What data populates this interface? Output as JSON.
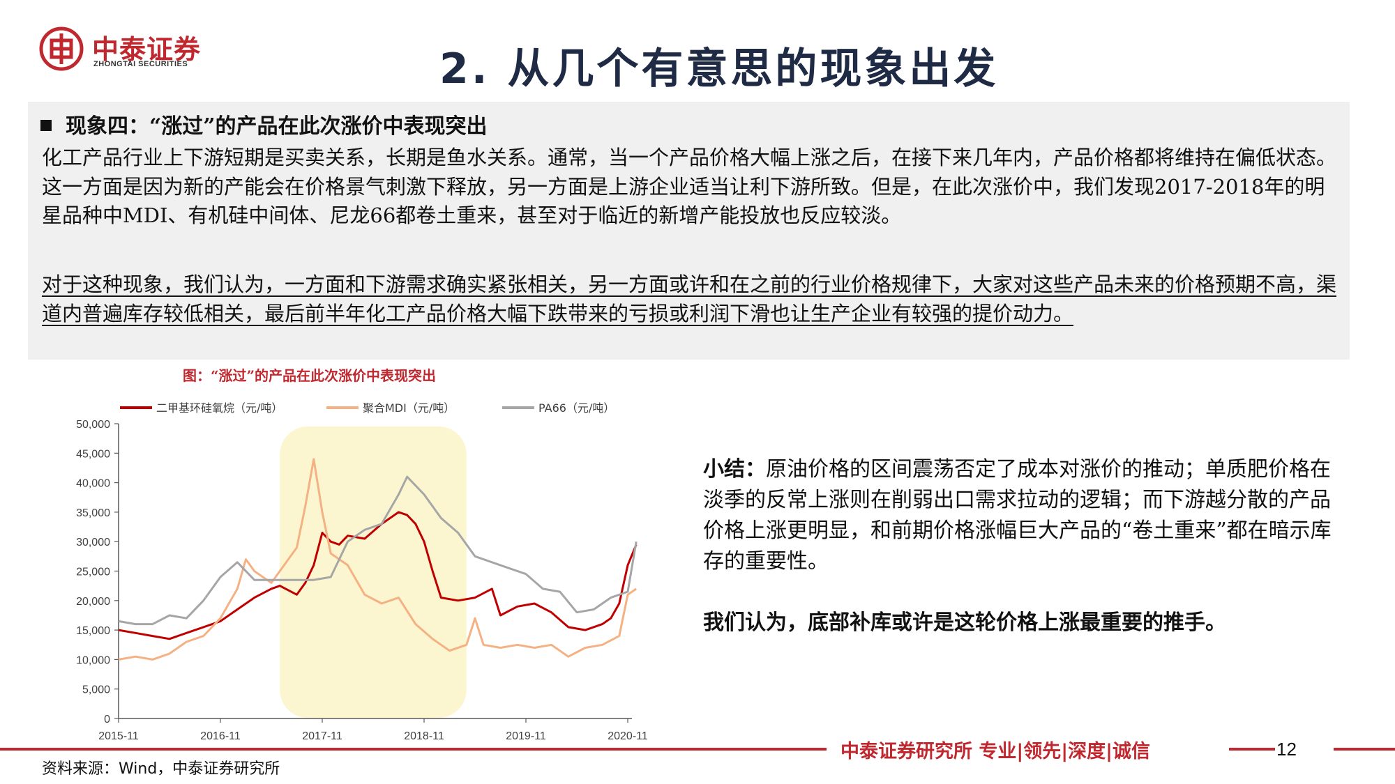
{
  "brand": {
    "name_cn": "中泰证券",
    "name_en": "ZHONGTAI SECURITIES"
  },
  "slide": {
    "title": "2. 从几个有意思的现象出发",
    "page_number": "12"
  },
  "section": {
    "heading": "现象四：“涨过”的产品在此次涨价中表现突出",
    "paragraph1": "化工产品行业上下游短期是买卖关系，长期是鱼水关系。通常，当一个产品价格大幅上涨之后，在接下来几年内，产品价格都将维持在偏低状态。这一方面是因为新的产能会在价格景气刺激下释放，另一方面是上游企业适当让利下游所致。但是，在此次涨价中，我们发现2017-2018年的明星品种中MDI、有机硅中间体、尼龙66都卷土重来，甚至对于临近的新增产能投放也反应较淡。",
    "paragraph2": "对于这种现象，我们认为，一方面和下游需求确实紧张相关，另一方面或许和在之前的行业价格规律下，大家对这些产品未来的价格预期不高，渠道内普遍库存较低相关，最后前半年化工产品价格大幅下跌带来的亏损或利润下滑也让生产企业有较强的提价动力。"
  },
  "figure": {
    "title": "图：“涨过”的产品在此次涨价中表现突出",
    "source": "资料来源：Wind，中泰证券研究所"
  },
  "summary": {
    "label": "小结：",
    "text": "原油价格的区间震荡否定了成本对涨价的推动；单质肥价格在淡季的反常上涨则在削弱出口需求拉动的逻辑；而下游越分散的产品价格上涨更明显，和前期价格涨幅巨大产品的“卷土重来”都在暗示库存的重要性。",
    "conclusion": "我们认为，底部补库或许是这轮价格上涨最重要的推手。"
  },
  "footer": {
    "tagline": "中泰证券研究所 专业|领先|深度|诚信"
  },
  "colors": {
    "brand_red": "#c0282f",
    "series_dmc": "#c00000",
    "series_mdi": "#f4b183",
    "series_pa66": "#a6a6a6",
    "highlight": "#fbf6cf"
  },
  "chart_data": {
    "type": "line",
    "title": "",
    "xlabel": "",
    "ylabel": "",
    "x_tick_labels": [
      "2015-11",
      "2016-11",
      "2017-11",
      "2018-11",
      "2019-11",
      "2020-11"
    ],
    "xlim": [
      "2015-11",
      "2020-12"
    ],
    "ylim": [
      0,
      50000
    ],
    "y_ticks": [
      0,
      5000,
      10000,
      15000,
      20000,
      25000,
      30000,
      35000,
      40000,
      45000,
      50000
    ],
    "y_tick_labels": [
      "0",
      "5,000",
      "10,000",
      "15,000",
      "20,000",
      "25,000",
      "30,000",
      "35,000",
      "40,000",
      "45,000",
      "50,000"
    ],
    "legend_position": "top",
    "grid": false,
    "highlight_range": [
      "2017-06",
      "2019-04"
    ],
    "series": [
      {
        "name": "二甲基环硅氧烷（元/吨）",
        "points": [
          [
            "2015-11",
            15000
          ],
          [
            "2016-01",
            14500
          ],
          [
            "2016-03",
            14000
          ],
          [
            "2016-05",
            13500
          ],
          [
            "2016-07",
            14500
          ],
          [
            "2016-09",
            15500
          ],
          [
            "2016-11",
            16500
          ],
          [
            "2017-01",
            18500
          ],
          [
            "2017-03",
            20500
          ],
          [
            "2017-05",
            22000
          ],
          [
            "2017-06",
            22500
          ],
          [
            "2017-08",
            21000
          ],
          [
            "2017-09",
            23000
          ],
          [
            "2017-10",
            26000
          ],
          [
            "2017-11",
            31500
          ],
          [
            "2017-12",
            30000
          ],
          [
            "2018-01",
            29500
          ],
          [
            "2018-02",
            31000
          ],
          [
            "2018-04",
            30500
          ],
          [
            "2018-06",
            33000
          ],
          [
            "2018-08",
            35000
          ],
          [
            "2018-09",
            34500
          ],
          [
            "2018-10",
            33000
          ],
          [
            "2018-11",
            30000
          ],
          [
            "2018-12",
            25000
          ],
          [
            "2019-01",
            20500
          ],
          [
            "2019-03",
            20000
          ],
          [
            "2019-05",
            20500
          ],
          [
            "2019-07",
            22000
          ],
          [
            "2019-08",
            17500
          ],
          [
            "2019-10",
            19000
          ],
          [
            "2019-12",
            19500
          ],
          [
            "2020-02",
            18000
          ],
          [
            "2020-04",
            15500
          ],
          [
            "2020-06",
            15000
          ],
          [
            "2020-08",
            16000
          ],
          [
            "2020-09",
            17000
          ],
          [
            "2020-10",
            19500
          ],
          [
            "2020-11",
            26000
          ],
          [
            "2020-12",
            29500
          ]
        ]
      },
      {
        "name": "聚合MDI（元/吨）",
        "points": [
          [
            "2015-11",
            10000
          ],
          [
            "2016-01",
            10500
          ],
          [
            "2016-03",
            10000
          ],
          [
            "2016-05",
            11000
          ],
          [
            "2016-07",
            13000
          ],
          [
            "2016-09",
            14000
          ],
          [
            "2016-11",
            17000
          ],
          [
            "2017-01",
            22000
          ],
          [
            "2017-02",
            27000
          ],
          [
            "2017-03",
            25000
          ],
          [
            "2017-05",
            23000
          ],
          [
            "2017-06",
            25000
          ],
          [
            "2017-08",
            29000
          ],
          [
            "2017-09",
            36000
          ],
          [
            "2017-10",
            44000
          ],
          [
            "2017-11",
            35000
          ],
          [
            "2017-12",
            28000
          ],
          [
            "2018-02",
            26000
          ],
          [
            "2018-04",
            21000
          ],
          [
            "2018-06",
            19500
          ],
          [
            "2018-08",
            20500
          ],
          [
            "2018-10",
            16000
          ],
          [
            "2018-12",
            13500
          ],
          [
            "2019-02",
            11500
          ],
          [
            "2019-04",
            12500
          ],
          [
            "2019-05",
            17000
          ],
          [
            "2019-06",
            12500
          ],
          [
            "2019-08",
            12000
          ],
          [
            "2019-10",
            12500
          ],
          [
            "2019-12",
            12000
          ],
          [
            "2020-02",
            12500
          ],
          [
            "2020-04",
            10500
          ],
          [
            "2020-06",
            12000
          ],
          [
            "2020-08",
            12500
          ],
          [
            "2020-10",
            14000
          ],
          [
            "2020-11",
            21000
          ],
          [
            "2020-12",
            22000
          ]
        ]
      },
      {
        "name": "PA66（元/吨）",
        "points": [
          [
            "2015-11",
            16500
          ],
          [
            "2016-01",
            16000
          ],
          [
            "2016-03",
            16000
          ],
          [
            "2016-05",
            17500
          ],
          [
            "2016-07",
            17000
          ],
          [
            "2016-09",
            20000
          ],
          [
            "2016-11",
            24000
          ],
          [
            "2017-01",
            26500
          ],
          [
            "2017-03",
            23500
          ],
          [
            "2017-06",
            23500
          ],
          [
            "2017-08",
            23500
          ],
          [
            "2017-10",
            23500
          ],
          [
            "2017-12",
            24000
          ],
          [
            "2018-02",
            30000
          ],
          [
            "2018-04",
            32000
          ],
          [
            "2018-06",
            33000
          ],
          [
            "2018-08",
            38000
          ],
          [
            "2018-09",
            41000
          ],
          [
            "2018-11",
            38000
          ],
          [
            "2019-01",
            34000
          ],
          [
            "2019-03",
            31500
          ],
          [
            "2019-05",
            27500
          ],
          [
            "2019-07",
            26500
          ],
          [
            "2019-09",
            25500
          ],
          [
            "2019-11",
            24500
          ],
          [
            "2020-01",
            22000
          ],
          [
            "2020-03",
            21500
          ],
          [
            "2020-05",
            18000
          ],
          [
            "2020-07",
            18500
          ],
          [
            "2020-09",
            20500
          ],
          [
            "2020-11",
            21500
          ],
          [
            "2020-12",
            30000
          ]
        ]
      }
    ]
  }
}
